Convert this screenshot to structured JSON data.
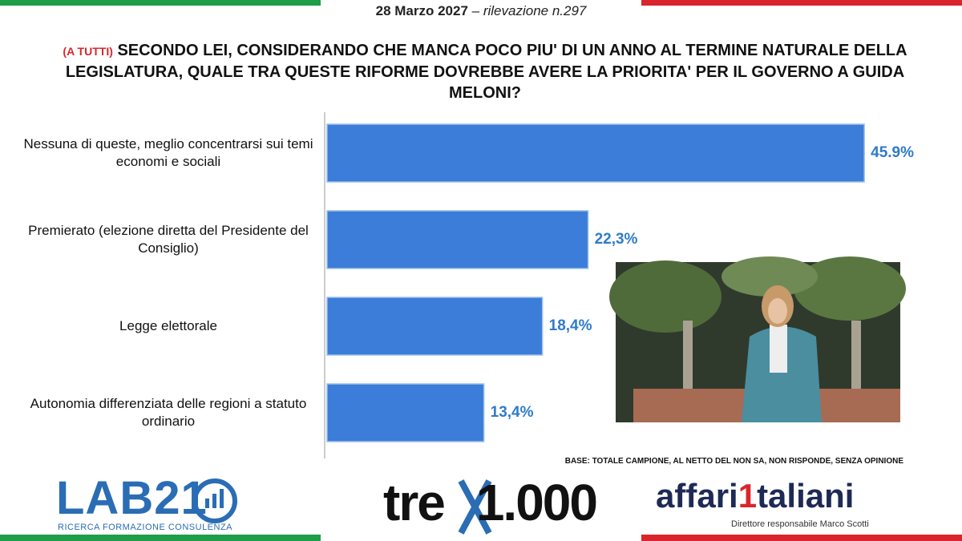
{
  "header": {
    "date": "28 Marzo 2027",
    "survey": "– rilevazione n.297"
  },
  "chart_data": {
    "type": "bar",
    "orientation": "horizontal",
    "title_tag": "(A TUTTI)",
    "title": "SECONDO LEI, CONSIDERANDO CHE MANCA POCO PIU' DI UN ANNO AL TERMINE NATURALE DELLA LEGISLATURA, QUALE TRA QUESTE RIFORME DOVREBBE AVERE LA PRIORITA' PER IL GOVERNO A GUIDA MELONI?",
    "categories": [
      "Nessuna di queste, meglio concentrarsi sui temi economi e sociali",
      "Premierato (elezione diretta del Presidente del Consiglio)",
      "Legge elettorale",
      "Autonomia differenziata delle regioni a statuto ordinario"
    ],
    "values": [
      45.9,
      22.3,
      18.4,
      13.4
    ],
    "value_labels": [
      "45.9%",
      "22,3%",
      "18,4%",
      "13,4%"
    ],
    "color": "#3b7dd8",
    "label_color": "#2f7bc8",
    "note": "BASE: TOTALE CAMPIONE, AL NETTO DEL NON SA, NON RISPONDE, SENZA OPINIONE"
  },
  "footer": {
    "lab_logo": "LAB21",
    "lab_tagline": "RICERCA FORMAZIONE CONSULENZA",
    "tre_logo": "tre",
    "tre_number": "1.000",
    "affari_left": "affari",
    "affari_one": "1",
    "affari_right": "taliani",
    "director": "Direttore responsabile Marco Scotti"
  }
}
